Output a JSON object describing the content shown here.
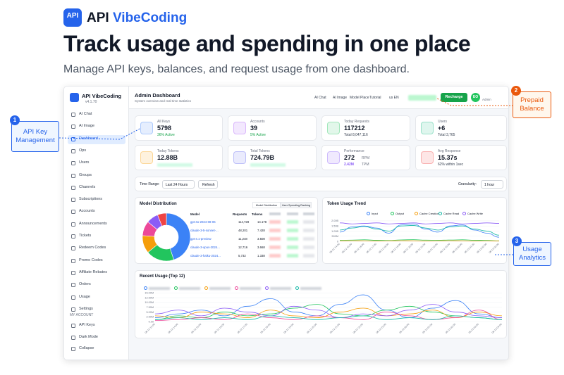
{
  "header": {
    "logo": "API",
    "brand_a": "API",
    "brand_b": "VibeCoding",
    "title": "Track usage and spending in one place",
    "subtitle": "Manage API keys, balances, and request usage from one dashboard."
  },
  "callouts": [
    {
      "num": "1",
      "label": "API Key Management"
    },
    {
      "num": "2",
      "label": "Prepaid Balance"
    },
    {
      "num": "3",
      "label": "Usage Analytics"
    }
  ],
  "sidebar": {
    "brand": "API VibeCoding",
    "version": "v4.1.70",
    "nav": [
      "AI Chat",
      "AI Image",
      "Dashboard",
      "Ops",
      "Users",
      "Groups",
      "Channels",
      "Subscriptions",
      "Accounts",
      "Announcements",
      "Tickets",
      "Redeem Codes",
      "Promo Codes",
      "Affiliate Rebates",
      "Orders",
      "Usage",
      "Settings"
    ],
    "section": "MY ACCOUNT",
    "account": [
      "API Keys",
      "Dark Mode",
      "Collapse"
    ]
  },
  "topbar": {
    "title": "Admin Dashboard",
    "subtitle": "System overview and real-time statistics",
    "links": [
      "AI Chat",
      "AI Image",
      "Model Place",
      "Tutorial",
      "us EN"
    ],
    "recharge": "Recharge",
    "avatar": "EO",
    "role": "Admin"
  },
  "stats": [
    {
      "title": "All Keys",
      "value": "5798",
      "sub": "36% Active",
      "color": "#3b82f6"
    },
    {
      "title": "Accounts",
      "value": "39",
      "sub": "5% Active",
      "color": "#a855f7"
    },
    {
      "title": "Today Requests",
      "value": "117212",
      "sub": "Total 8,047,116",
      "color": "#22c55e"
    },
    {
      "title": "Users",
      "value": "+6",
      "sub": "Total 3,765",
      "color": "#10b981"
    },
    {
      "title": "Today Tokens",
      "value": "12.88B",
      "sub": "",
      "color": "#f59e0b"
    },
    {
      "title": "Total Tokens",
      "value": "724.79B",
      "sub": "",
      "color": "#6366f1"
    },
    {
      "title": "Performance",
      "value": "272",
      "unit": "RPM",
      "sub": "2.42M",
      "sub_unit": "TPM",
      "color": "#8b5cf6"
    },
    {
      "title": "Avg Response",
      "value": "15.37s",
      "sub": "62% within 1sec",
      "color": "#ef4444"
    }
  ],
  "filter": {
    "range_label": "Time Range:",
    "range": "Last 24 Hours",
    "refresh": "Refresh",
    "gran_label": "Granularity:",
    "gran": "1 hour"
  },
  "model_card": {
    "title": "Model Distribution",
    "tabs": [
      "Model Distribution",
      "User Spending Ranking"
    ],
    "columns": [
      "Model",
      "Requests",
      "Tokens"
    ],
    "rows": [
      [
        "gpt-4o-2024-08-06",
        "114,728",
        "14.178"
      ],
      [
        "claude-3-5-sonnet-...",
        "48,201",
        "7.428"
      ],
      [
        "gpt-4.1-preview",
        "11,248",
        "3.508"
      ],
      [
        "claude-3-opus-2024...",
        "12,716",
        "3.668"
      ],
      [
        "claude-3-haiku-2024...",
        "5,732",
        "1.338"
      ]
    ],
    "donut": {
      "type": "pie",
      "values": [
        45,
        19,
        12,
        10,
        8,
        6
      ],
      "colors": [
        "#3b82f6",
        "#22c55e",
        "#f59e0b",
        "#ec4899",
        "#8b5cf6",
        "#ef4444"
      ]
    }
  },
  "trend": {
    "type": "line",
    "title": "Token Usage Trend",
    "categories": [
      "06-12 14:00",
      "06-12 15:00",
      "06-12 16:00",
      "06-12 17:00",
      "06-12 18:00",
      "06-12 19:00",
      "06-12 20:00",
      "06-12 21:00",
      "06-12 22:00",
      "06-12 23:00",
      "06-13 00:00",
      "06-13 01:00",
      "06-13 02:00",
      "06-13 03:00"
    ],
    "ylim": [
      0,
      2.2
    ],
    "yticks": [
      0,
      {
        "value": 0.5,
        "label": "500M"
      },
      {
        "value": 1,
        "label": "1.00B"
      },
      {
        "value": 1.5,
        "label": "1.50B"
      },
      {
        "value": 2,
        "label": "2.00B"
      }
    ],
    "series": [
      {
        "name": "Input",
        "color": "#3b82f6",
        "values": [
          0.9,
          1.4,
          1.5,
          1.3,
          0.8,
          1.6,
          1.7,
          1.2,
          0.9,
          1.5,
          1.6,
          1.1,
          0.8,
          0.4
        ]
      },
      {
        "name": "Output",
        "color": "#22c55e",
        "values": [
          0.1,
          0.12,
          0.15,
          0.1,
          0.08,
          0.14,
          0.16,
          0.12,
          0.1,
          0.13,
          0.15,
          0.11,
          0.09,
          0.05
        ]
      },
      {
        "name": "Cache Creation",
        "color": "#f59e0b",
        "values": [
          0.05,
          0.06,
          0.05,
          0.04,
          0.05,
          0.06,
          0.05,
          0.04,
          0.05,
          0.06,
          0.05,
          0.04,
          0.05,
          0.03
        ]
      },
      {
        "name": "Cache Read",
        "color": "#14b8a6",
        "values": [
          1.1,
          1.3,
          1.45,
          1.2,
          1.0,
          1.5,
          1.55,
          1.3,
          1.1,
          1.4,
          1.5,
          1.2,
          1.0,
          0.6
        ]
      },
      {
        "name": "Cache Write",
        "color": "#8b5cf6",
        "values": [
          1.8,
          1.7,
          1.75,
          1.8,
          1.7,
          1.75,
          1.8,
          1.7,
          1.75,
          1.8,
          1.7,
          1.75,
          1.8,
          1.75
        ]
      }
    ]
  },
  "recent": {
    "type": "line",
    "title": "Recent Usage (Top 12)",
    "categories": [
      "06-12 13:00",
      "06-12 14:00",
      "06-12 15:00",
      "06-12 16:00",
      "06-12 17:00",
      "06-12 18:00",
      "06-12 19:00",
      "06-12 20:00",
      "06-12 21:00",
      "06-12 22:00",
      "06-12 23:00",
      "06-13 00:00",
      "06-13 01:00",
      "06-13 02:00",
      "06-13 03:00",
      "06-13 04:00"
    ],
    "ylim": [
      0,
      15.5
    ],
    "yticks": [
      {
        "value": 0,
        "label": "0.00"
      },
      {
        "value": 2.5,
        "label": "2.50M"
      },
      {
        "value": 5,
        "label": "5.00M"
      },
      {
        "value": 7.5,
        "label": "7.50M"
      },
      {
        "value": 10,
        "label": "10.00M"
      },
      {
        "value": 12.5,
        "label": "12.50M"
      },
      {
        "value": 15,
        "label": "15.00M"
      }
    ],
    "series": [
      {
        "color": "#3b82f6",
        "values": [
          2,
          4,
          6,
          3,
          8,
          12,
          5,
          3,
          9,
          14,
          6,
          2,
          7,
          11,
          4,
          2
        ]
      },
      {
        "color": "#22c55e",
        "values": [
          1,
          3,
          2,
          5,
          3,
          4,
          7,
          9,
          4,
          3,
          6,
          8,
          5,
          3,
          2,
          1
        ]
      },
      {
        "color": "#f59e0b",
        "values": [
          3,
          2,
          5,
          4,
          2,
          6,
          3,
          2,
          5,
          7,
          3,
          4,
          6,
          2,
          5,
          3
        ]
      },
      {
        "color": "#ec4899",
        "values": [
          0.5,
          1,
          2,
          1,
          4,
          2,
          1,
          3,
          2,
          1,
          5,
          3,
          1,
          2,
          6,
          1
        ]
      },
      {
        "color": "#8b5cf6",
        "values": [
          4,
          6,
          3,
          7,
          5,
          3,
          8,
          6,
          2,
          4,
          3,
          6,
          9,
          5,
          3,
          2
        ]
      },
      {
        "color": "#14b8a6",
        "values": [
          1,
          2,
          1,
          2,
          1,
          3,
          2,
          1,
          2,
          3,
          1,
          2,
          1,
          3,
          2,
          1
        ]
      }
    ]
  }
}
